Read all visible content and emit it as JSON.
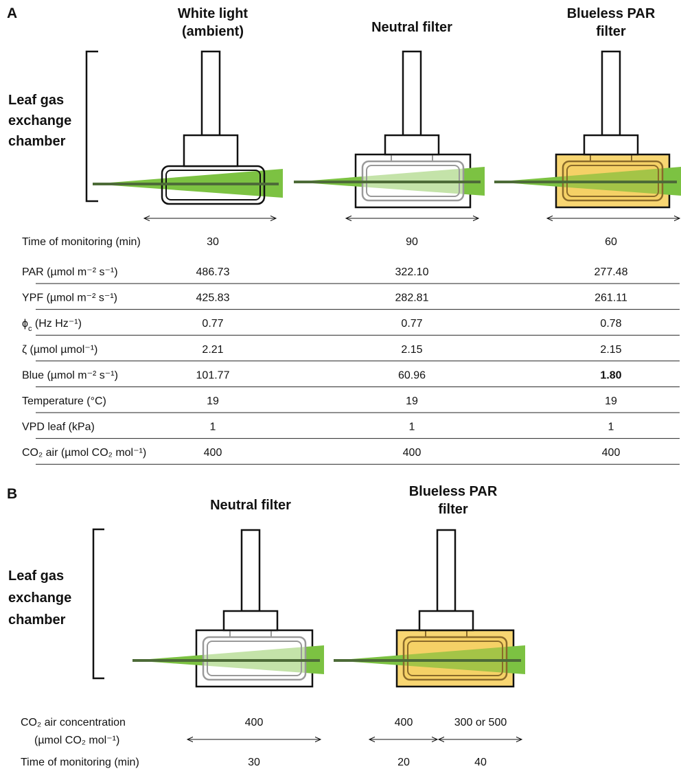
{
  "panel_a": {
    "label": "A",
    "columns": [
      [
        "White light",
        "(ambient)"
      ],
      [
        "Neutral filter"
      ],
      [
        "Blueless PAR",
        "filter"
      ]
    ],
    "chamber_label": [
      "Leaf gas",
      "exchange",
      "chamber"
    ],
    "monitoring": {
      "label": "Time of monitoring (min)",
      "values": [
        "30",
        "90",
        "60"
      ]
    },
    "table": {
      "rows": [
        {
          "label": "PAR (µmol m⁻² s⁻¹)",
          "values": [
            "486.73",
            "322.10",
            "277.48"
          ]
        },
        {
          "label": "YPF (µmol m⁻² s⁻¹)",
          "values": [
            "425.83",
            "282.81",
            "261.11"
          ]
        },
        {
          "label": [
            "ϕ",
            "c",
            " (Hz Hz⁻¹)"
          ],
          "values": [
            "0.77",
            "0.77",
            "0.78"
          ]
        },
        {
          "label": "ζ (µmol µmol⁻¹)",
          "values": [
            "2.21",
            "2.15",
            "2.15"
          ]
        },
        {
          "label": "Blue (µmol m⁻² s⁻¹)",
          "values": [
            "101.77",
            "60.96",
            "1.80"
          ]
        },
        {
          "label": "Temperature (°C)",
          "values": [
            "19",
            "19",
            "19"
          ]
        },
        {
          "label": "VPD leaf (kPa)",
          "values": [
            "1",
            "1",
            "1"
          ]
        },
        {
          "label": "CO₂ air (µmol CO₂ mol⁻¹)",
          "values": [
            "400",
            "400",
            "400"
          ]
        }
      ]
    }
  },
  "panel_b": {
    "label": "B",
    "columns": [
      [
        "Neutral filter"
      ],
      [
        "Blueless PAR",
        "filter"
      ]
    ],
    "chamber_label": [
      "Leaf gas",
      "exchange",
      "chamber"
    ],
    "co2": {
      "label": [
        "CO₂ air concentration",
        "(µmol CO₂ mol⁻¹)"
      ],
      "values": [
        "400",
        "400",
        "300 or 500"
      ]
    },
    "monitoring": {
      "label": "Time of monitoring (min)",
      "values": [
        "30",
        "20",
        "40"
      ]
    }
  }
}
